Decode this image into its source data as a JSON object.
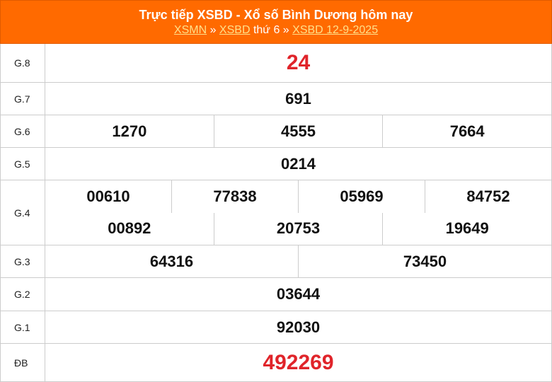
{
  "header": {
    "title": "Trực tiếp XSBD - Xổ số Bình Dương hôm nay",
    "breadcrumb": {
      "link1": "XSMN",
      "sep1": " » ",
      "link2": "XSBD",
      "text": " thứ 6 » ",
      "link3": "XSBD 12-9-2025"
    }
  },
  "colors": {
    "header_bg": "#ff6a00",
    "link": "#ffe08a",
    "highlight": "#e0242a"
  },
  "prizes": [
    {
      "label": "G.8",
      "rows": [
        [
          "24"
        ]
      ],
      "highlight": true
    },
    {
      "label": "G.7",
      "rows": [
        [
          "691"
        ]
      ]
    },
    {
      "label": "G.6",
      "rows": [
        [
          "1270",
          "4555",
          "7664"
        ]
      ]
    },
    {
      "label": "G.5",
      "rows": [
        [
          "0214"
        ]
      ]
    },
    {
      "label": "G.4",
      "rows": [
        [
          "00610",
          "77838",
          "05969",
          "84752"
        ],
        [
          "00892",
          "20753",
          "19649"
        ]
      ]
    },
    {
      "label": "G.3",
      "rows": [
        [
          "64316",
          "73450"
        ]
      ]
    },
    {
      "label": "G.2",
      "rows": [
        [
          "03644"
        ]
      ]
    },
    {
      "label": "G.1",
      "rows": [
        [
          "92030"
        ]
      ]
    },
    {
      "label": "ĐB",
      "rows": [
        [
          "492269"
        ]
      ],
      "highlight": true
    }
  ]
}
